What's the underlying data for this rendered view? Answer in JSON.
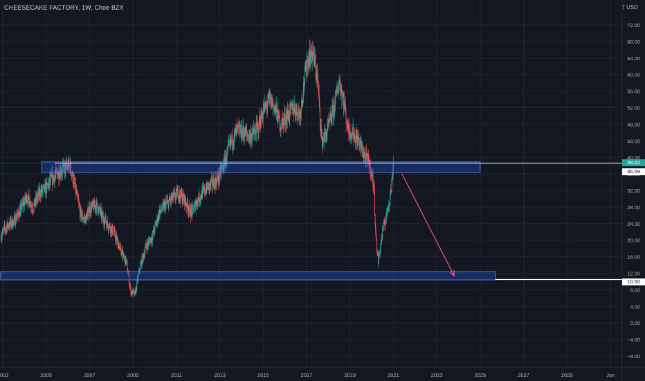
{
  "header": {
    "symbol_title": "CHEESECAKE FACTORY, 1W, Choe BZX",
    "currency": "7 USD"
  },
  "price_tags": {
    "last_price": "38.62",
    "resistance_line": "36.59",
    "support_line": "10.50"
  },
  "colors": {
    "background": "#131722",
    "grid": "#1f2533",
    "axis_text": "#b2b5be",
    "candle_up": "#26a69a",
    "candle_down": "#ef5350",
    "zone_fill": "#2962ff",
    "zone_border": "#5b7fd6",
    "arrow": "#f0598a",
    "level_line": "#ffffff"
  },
  "chart_data": {
    "type": "candlestick",
    "title": "CHEESECAKE FACTORY, 1W, Choe BZX",
    "ylim": [
      -10,
      76
    ],
    "xlim": [
      2002.9,
      2032.0
    ],
    "grid": true,
    "y_ticks": [
      "72.00",
      "68.00",
      "64.00",
      "60.00",
      "56.00",
      "52.00",
      "48.00",
      "44.00",
      "40.00",
      "36.00",
      "32.00",
      "28.00",
      "24.00",
      "20.00",
      "16.00",
      "12.00",
      "8.00",
      "4.00",
      "0.00",
      "−4.00",
      "−8.00"
    ],
    "y_tick_values": [
      72,
      68,
      64,
      60,
      56,
      52,
      48,
      44,
      40,
      36,
      32,
      28,
      24,
      20,
      16,
      12,
      8,
      4,
      0,
      -4,
      -8
    ],
    "x_ticks": [
      "2003",
      "2005",
      "2007",
      "2009",
      "2011",
      "2013",
      "2015",
      "2017",
      "2019",
      "2021",
      "2023",
      "2025",
      "2027",
      "2029",
      "Jun"
    ],
    "x_tick_values": [
      2003,
      2005,
      2007,
      2009,
      2011,
      2013,
      2015,
      2017,
      2019,
      2021,
      2023,
      2025,
      2027,
      2029,
      2031
    ],
    "price_path": [
      [
        2002.9,
        21.0
      ],
      [
        2003.2,
        23.5
      ],
      [
        2003.5,
        24.5
      ],
      [
        2003.8,
        27.0
      ],
      [
        2004.1,
        30.5
      ],
      [
        2004.4,
        28.0
      ],
      [
        2004.7,
        31.5
      ],
      [
        2005.0,
        32.5
      ],
      [
        2005.3,
        35.0
      ],
      [
        2005.6,
        36.5
      ],
      [
        2005.9,
        37.5
      ],
      [
        2006.1,
        38.0
      ],
      [
        2006.4,
        31.0
      ],
      [
        2006.6,
        26.0
      ],
      [
        2006.8,
        25.0
      ],
      [
        2007.0,
        27.5
      ],
      [
        2007.3,
        28.5
      ],
      [
        2007.6,
        25.5
      ],
      [
        2007.9,
        23.5
      ],
      [
        2008.1,
        22.0
      ],
      [
        2008.4,
        18.0
      ],
      [
        2008.7,
        14.5
      ],
      [
        2008.9,
        7.5
      ],
      [
        2009.1,
        7.0
      ],
      [
        2009.3,
        13.0
      ],
      [
        2009.6,
        18.5
      ],
      [
        2009.9,
        21.0
      ],
      [
        2010.2,
        26.5
      ],
      [
        2010.5,
        28.5
      ],
      [
        2010.8,
        30.0
      ],
      [
        2011.1,
        31.5
      ],
      [
        2011.4,
        29.5
      ],
      [
        2011.7,
        26.5
      ],
      [
        2012.0,
        30.0
      ],
      [
        2012.3,
        32.0
      ],
      [
        2012.6,
        33.5
      ],
      [
        2012.9,
        34.5
      ],
      [
        2013.2,
        38.5
      ],
      [
        2013.5,
        43.5
      ],
      [
        2013.8,
        46.5
      ],
      [
        2014.1,
        46.0
      ],
      [
        2014.4,
        45.0
      ],
      [
        2014.7,
        46.5
      ],
      [
        2015.0,
        51.0
      ],
      [
        2015.3,
        54.0
      ],
      [
        2015.5,
        52.5
      ],
      [
        2015.8,
        48.0
      ],
      [
        2016.1,
        50.0
      ],
      [
        2016.4,
        52.0
      ],
      [
        2016.7,
        50.5
      ],
      [
        2016.9,
        59.0
      ],
      [
        2017.1,
        64.5
      ],
      [
        2017.3,
        65.0
      ],
      [
        2017.5,
        59.0
      ],
      [
        2017.7,
        44.0
      ],
      [
        2017.9,
        45.5
      ],
      [
        2018.1,
        49.0
      ],
      [
        2018.3,
        53.0
      ],
      [
        2018.5,
        58.5
      ],
      [
        2018.7,
        54.0
      ],
      [
        2018.9,
        47.0
      ],
      [
        2019.1,
        46.0
      ],
      [
        2019.4,
        44.0
      ],
      [
        2019.7,
        40.0
      ],
      [
        2019.9,
        38.5
      ],
      [
        2020.1,
        33.0
      ],
      [
        2020.2,
        20.0
      ],
      [
        2020.3,
        15.0
      ],
      [
        2020.5,
        22.0
      ],
      [
        2020.7,
        26.5
      ],
      [
        2020.9,
        32.5
      ],
      [
        2021.0,
        38.6
      ]
    ],
    "annotations": [
      {
        "type": "zone",
        "name": "resistance-zone",
        "x": [
          2004.8,
          2025.0
        ],
        "y": [
          36.4,
          38.9
        ]
      },
      {
        "type": "zone",
        "name": "support-zone",
        "x": [
          2002.9,
          2025.7
        ],
        "y": [
          10.4,
          12.4
        ]
      },
      {
        "type": "hline",
        "name": "last-price-line",
        "x_from": 2005.4,
        "y": 38.62
      },
      {
        "type": "hline",
        "name": "support-line",
        "x_from": 2025.7,
        "y": 10.5
      },
      {
        "type": "arrow",
        "name": "projection-arrow",
        "from": [
          2021.4,
          36.0
        ],
        "to": [
          2023.8,
          11.4
        ]
      }
    ]
  }
}
